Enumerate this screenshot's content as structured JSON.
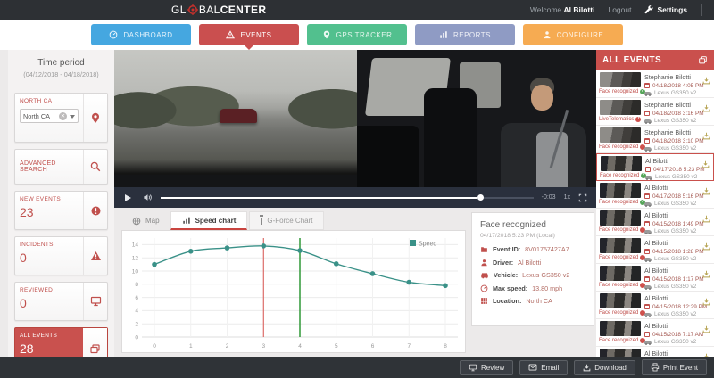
{
  "app": {
    "logo_part1": "GL",
    "logo_part2": "BAL",
    "logo_part3": "CENTER",
    "welcome_label": "Welcome",
    "user_name": "Al Bilotti",
    "logout_label": "Logout",
    "settings_label": "Settings"
  },
  "nav": {
    "dashboard": "DASHBOARD",
    "events": "EVENTS",
    "gps_tracker": "GPS TRACKER",
    "reports": "REPORTS",
    "configure": "CONFIGURE"
  },
  "sidebar": {
    "time_period_title": "Time period",
    "time_period_range": "(04/12/2018 - 04/18/2018)",
    "region_label": "NORTH CA",
    "region_value": "North CA",
    "advanced_search_label": "ADVANCED SEARCH",
    "counters": [
      {
        "label": "NEW EVENTS",
        "value": "23"
      },
      {
        "label": "INCIDENTS",
        "value": "0"
      },
      {
        "label": "REVIEWED",
        "value": "0"
      },
      {
        "label": "ALL EVENTS",
        "value": "28",
        "selected": true
      }
    ]
  },
  "player": {
    "remaining_time": "-0:03",
    "playback_rate": "1x"
  },
  "content_tabs": {
    "map": "Map",
    "speed_chart": "Speed chart",
    "g_force": "G-Force Chart"
  },
  "chart_data": {
    "type": "line",
    "title": "Speed chart",
    "x": [
      0,
      1,
      2,
      3,
      4,
      5,
      6,
      7,
      8
    ],
    "series": [
      {
        "name": "Speed",
        "color": "#3a9188",
        "values": [
          11,
          13,
          13.5,
          13.8,
          13.1,
          11.1,
          9.6,
          8.3,
          7.8
        ]
      }
    ],
    "xlabel": "",
    "ylabel": "",
    "ylim": [
      0,
      15
    ],
    "yticks": [
      0,
      2,
      4,
      6,
      8,
      10,
      12,
      14
    ],
    "grid": true,
    "legend_position": "top-right",
    "markers": [
      {
        "x": 3,
        "color": "#d9534f",
        "width": 1
      },
      {
        "x": 4,
        "color": "#3c9e44",
        "width": 1.6
      }
    ]
  },
  "event_details": {
    "title": "Face recognized",
    "datetime": "04/17/2018 5:23 PM (Local)",
    "fields": [
      {
        "icon": "folder-icon",
        "label": "Event ID:",
        "value": "8V01757427A7"
      },
      {
        "icon": "driver-icon",
        "label": "Driver:",
        "value": "Al Bilotti"
      },
      {
        "icon": "vehicle-icon",
        "label": "Vehicle:",
        "value": "Lexus GS350 v2"
      },
      {
        "icon": "speedometer-icon",
        "label": "Max speed:",
        "value": "13.80 mph"
      },
      {
        "icon": "location-icon",
        "label": "Location:",
        "value": "North CA"
      }
    ]
  },
  "events_panel": {
    "title": "ALL EVENTS",
    "items": [
      {
        "name": "Stephanie Bilotti",
        "datetime": "04/18/2018 4:05 PM",
        "vehicle": "Lexus GS350 v2",
        "type": "Face recognized",
        "status": "ok"
      },
      {
        "name": "Stephanie Bilotti",
        "datetime": "04/18/2018 3:16 PM",
        "vehicle": "Lexus GS350 v2",
        "type": "LiveTelematics",
        "status": "fail"
      },
      {
        "name": "Stephanie Bilotti",
        "datetime": "04/18/2018 3:10 PM",
        "vehicle": "Lexus GS350 v2",
        "type": "Face recognized",
        "status": "fail"
      },
      {
        "name": "Al Bilotti",
        "datetime": "04/17/2018 5:23 PM",
        "vehicle": "Lexus GS350 v2",
        "type": "Face recognized",
        "status": "ok",
        "selected": true
      },
      {
        "name": "Al Bilotti",
        "datetime": "04/17/2018 5:16 PM",
        "vehicle": "Lexus GS350 v2",
        "type": "Face recognized",
        "status": "ok"
      },
      {
        "name": "Al Bilotti",
        "datetime": "04/15/2018 1:49 PM",
        "vehicle": "Lexus GS350 v2",
        "type": "Face recognized",
        "status": "fail"
      },
      {
        "name": "Al Bilotti",
        "datetime": "04/15/2018 1:28 PM",
        "vehicle": "Lexus GS350 v2",
        "type": "Face recognized",
        "status": "fail"
      },
      {
        "name": "Al Bilotti",
        "datetime": "04/15/2018 1:17 PM",
        "vehicle": "Lexus GS350 v2",
        "type": "Face recognized",
        "status": "fail"
      },
      {
        "name": "Al Bilotti",
        "datetime": "04/15/2018 12:29 PM",
        "vehicle": "Lexus GS350 v2",
        "type": "Face recognized",
        "status": "fail"
      },
      {
        "name": "Al Bilotti",
        "datetime": "04/15/2018 7:17 AM",
        "vehicle": "Lexus GS350 v2",
        "type": "Face recognized",
        "status": "fail"
      },
      {
        "name": "Al Bilotti"
      }
    ]
  },
  "footer": {
    "review": "Review",
    "email": "Email",
    "download": "Download",
    "print": "Print Event"
  },
  "icons": {
    "logo-target-icon": "red crosshair ring",
    "settings-icon": "wrench",
    "dashboard-icon": "speedometer",
    "events-icon": "warning-triangle",
    "gps-tracker-icon": "map-pin",
    "reports-icon": "bar-chart",
    "configure-icon": "person",
    "location-pin-icon": "map-pin",
    "search-icon": "magnifier",
    "new-events-icon": "alert-badge",
    "incidents-icon": "warning-triangle",
    "reviewed-icon": "monitor",
    "all-events-icon": "copy-stack",
    "download-icon": "tray-arrow",
    "calendar-icon": "calendar",
    "status-ok": "check-circle",
    "status-fail": "exclamation-circle"
  },
  "colors": {
    "header_bg": "#2d3034",
    "accent_red": "#ca504d",
    "nav_blue": "#45a7e0",
    "nav_green": "#52c08e",
    "nav_purple": "#8f9bc4",
    "nav_orange": "#f6ab52",
    "chart_teal": "#3a9188",
    "marker_red": "#d9534f",
    "marker_green": "#3c9e44",
    "download_yellow": "#b4a04c"
  }
}
